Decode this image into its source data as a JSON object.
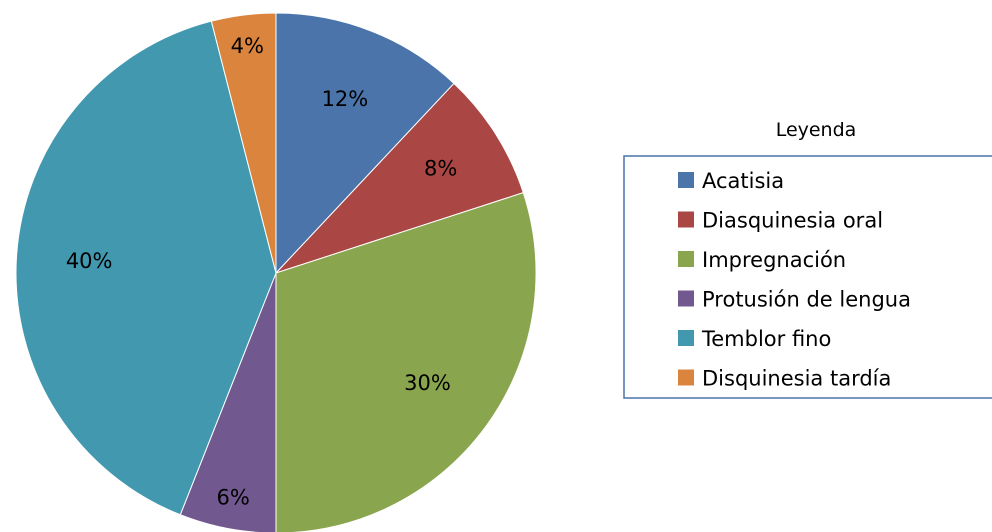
{
  "chart_data": {
    "type": "pie",
    "title": "",
    "legend_title": "Leyenda",
    "legend_position": "right",
    "slices": [
      {
        "label": "Acatisia",
        "value": 12,
        "display": "12%",
        "color": "#4a74aa"
      },
      {
        "label": "Diasquinesia oral",
        "value": 8,
        "display": "8%",
        "color": "#aa4644"
      },
      {
        "label": "Impregnación",
        "value": 30,
        "display": "30%",
        "color": "#89a54e"
      },
      {
        "label": "Protusión de lengua",
        "value": 6,
        "display": "6%",
        "color": "#71588f"
      },
      {
        "label": "Temblor fino",
        "value": 40,
        "display": "40%",
        "color": "#4198af"
      },
      {
        "label": "Disquinesia tardía",
        "value": 4,
        "display": "4%",
        "color": "#db843d"
      }
    ]
  }
}
